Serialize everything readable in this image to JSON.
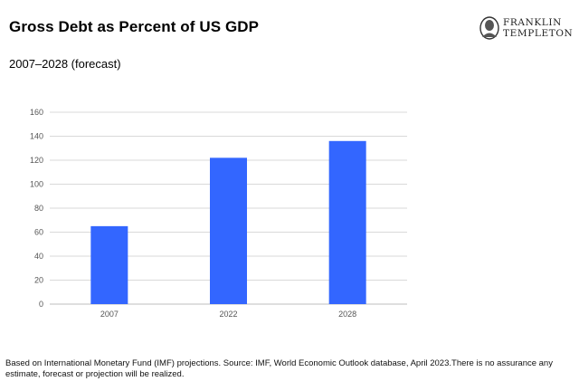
{
  "header": {
    "title": "Gross Debt as Percent of US GDP",
    "subtitle": "2007–2028 (forecast)"
  },
  "logo": {
    "line1": "FRANKLIN",
    "line2": "TEMPLETON"
  },
  "colors": {
    "bar": "#3366ff",
    "grid": "#d9d9d9"
  },
  "chart_data": {
    "type": "bar",
    "title": "Gross Debt as Percent of US GDP",
    "subtitle": "2007–2028 (forecast)",
    "categories": [
      "2007",
      "2022",
      "2028"
    ],
    "values": [
      65,
      122,
      136
    ],
    "yticks": [
      0,
      20,
      40,
      60,
      80,
      100,
      120,
      140,
      160
    ],
    "ylim": [
      0,
      160
    ],
    "xlabel": "",
    "ylabel": "",
    "grid": true,
    "legend": "none"
  },
  "footnote": "Based on International Monetary Fund (IMF) projections. Source: IMF, World Economic Outlook database, April 2023.There is no assurance any estimate, forecast or projection will be realized."
}
